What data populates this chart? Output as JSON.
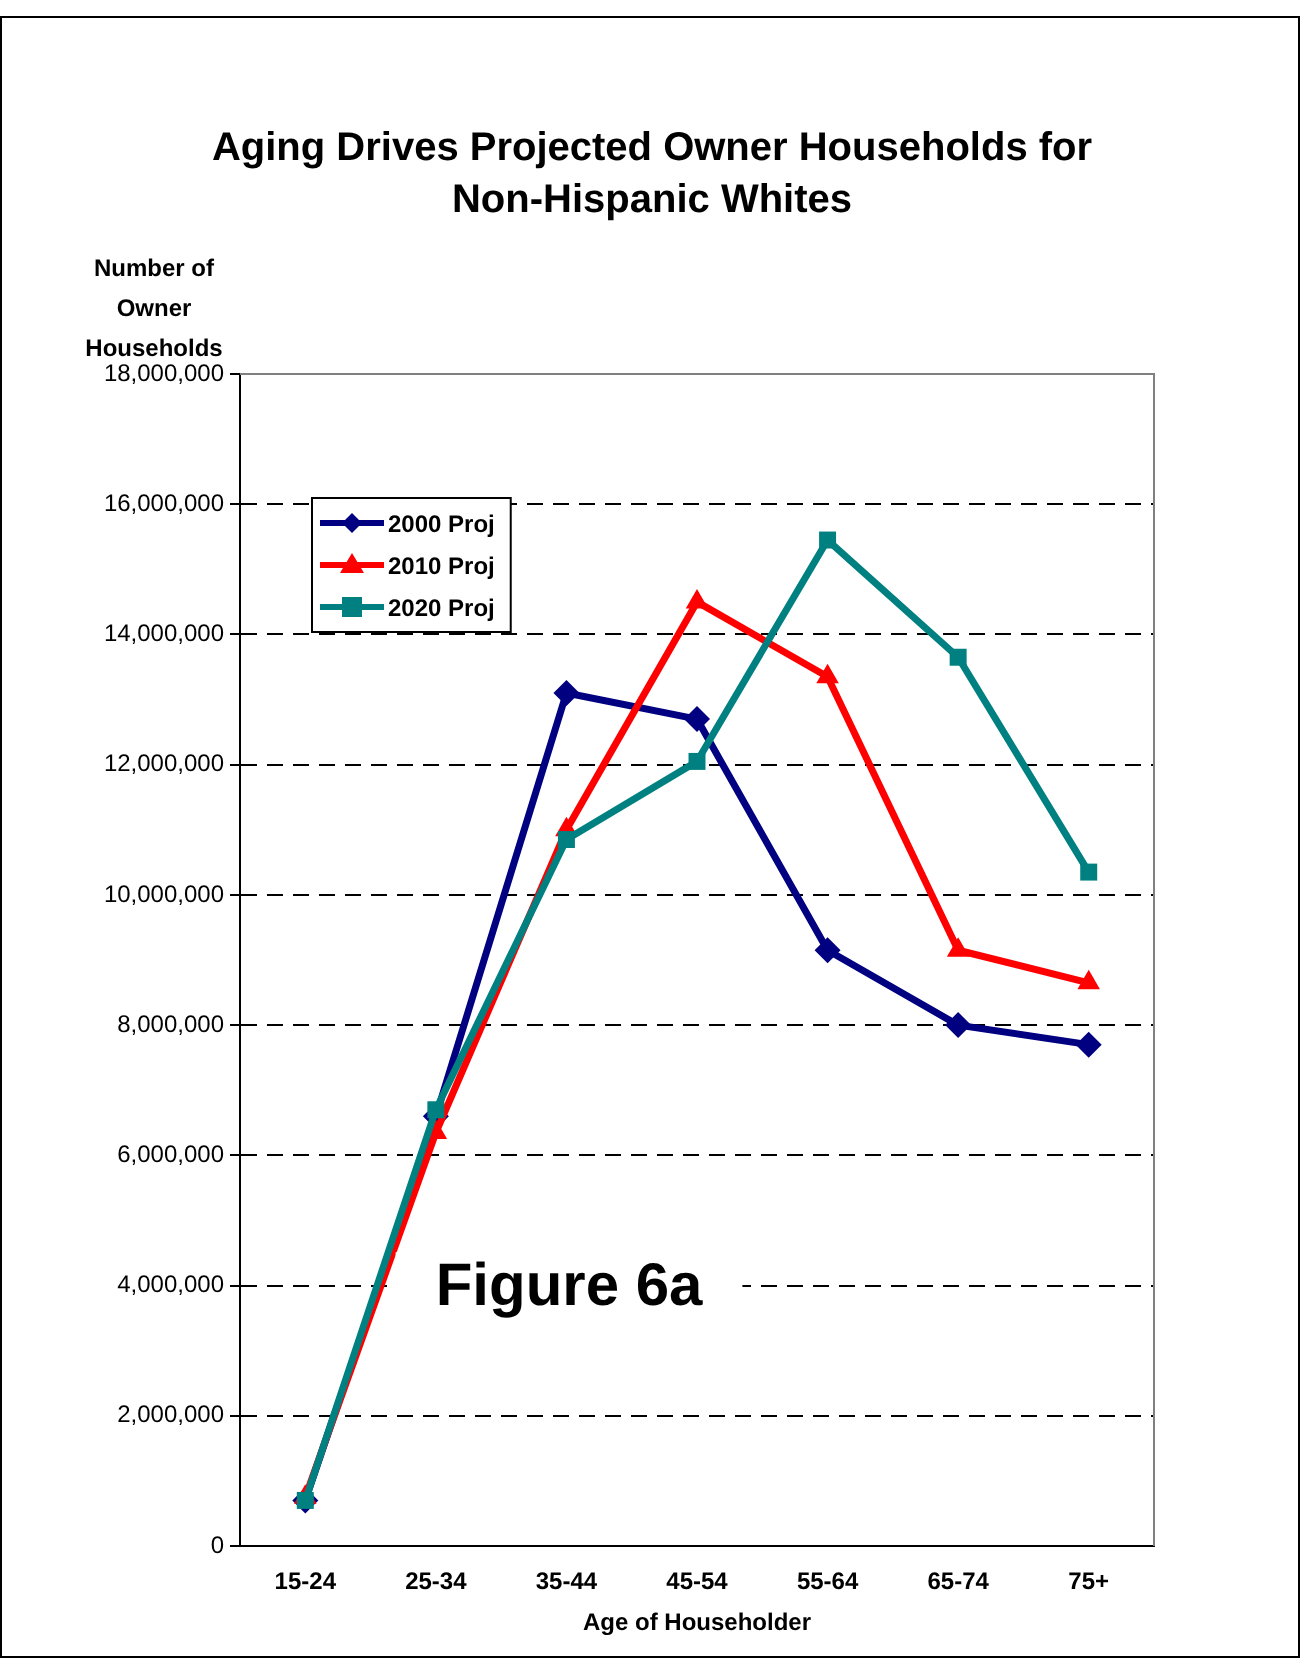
{
  "chart_data": {
    "type": "line",
    "title": "Aging Drives Projected Owner Households for Non-Hispanic Whites",
    "ylabel": "Number of Owner Households",
    "xlabel": "Age of Householder",
    "categories": [
      "15-24",
      "25-34",
      "35-44",
      "45-54",
      "55-64",
      "65-74",
      "75+"
    ],
    "series": [
      {
        "name": "2000 Proj",
        "color": "#000080",
        "marker": "diamond",
        "values": [
          700000,
          6600000,
          13100000,
          12700000,
          9150000,
          8000000,
          7700000
        ]
      },
      {
        "name": "2010 Proj",
        "color": "#ff0000",
        "marker": "triangle",
        "values": [
          750000,
          6350000,
          11000000,
          14500000,
          13350000,
          9150000,
          8650000
        ]
      },
      {
        "name": "2020 Proj",
        "color": "#008080",
        "marker": "square",
        "values": [
          700000,
          6700000,
          10850000,
          12050000,
          15450000,
          13650000,
          10350000
        ]
      }
    ],
    "ylim": [
      0,
      18000000
    ],
    "yticks": [
      0,
      {
        "value": 2000000,
        "label": "2,000,000"
      },
      {
        "value": 4000000,
        "label": "4,000,000"
      },
      {
        "value": 6000000,
        "label": "6,000,000"
      },
      {
        "value": 8000000,
        "label": "8,000,000"
      },
      {
        "value": 10000000,
        "label": "10,000,000"
      },
      {
        "value": 12000000,
        "label": "12,000,000"
      },
      {
        "value": 14000000,
        "label": "14,000,000"
      },
      {
        "value": 16000000,
        "label": "16,000,000"
      },
      {
        "value": 18000000,
        "label": "18,000,000"
      }
    ],
    "grid": "y",
    "legend": "top left",
    "line_style": "solid",
    "annotations": [
      "Figure 6a"
    ]
  }
}
